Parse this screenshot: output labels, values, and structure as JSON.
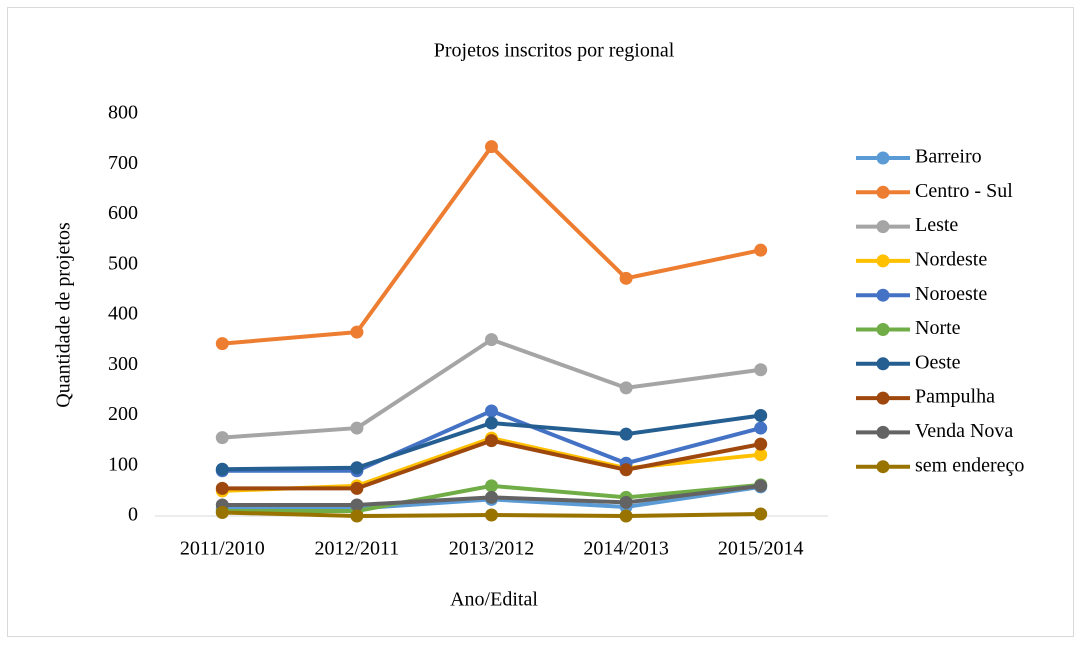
{
  "chart_data": {
    "type": "line",
    "title": "Projetos inscritos por regional",
    "x_label": "Ano/Edital",
    "y_label": "Quantidade de projetos",
    "categories": [
      "2011/2010",
      "2012/2011",
      "2013/2012",
      "2014/2013",
      "2015/2014"
    ],
    "ylim": [
      0,
      800
    ],
    "yticks": [
      0,
      100,
      200,
      300,
      400,
      500,
      600,
      700,
      800
    ],
    "grid": false,
    "legend": "right",
    "series": [
      {
        "name": "Barreiro",
        "color": "#5b9bd5",
        "values": [
          15,
          15,
          33,
          18,
          58
        ]
      },
      {
        "name": "Centro - Sul",
        "color": "#ed7d31",
        "values": [
          343,
          366,
          735,
          473,
          529
        ]
      },
      {
        "name": "Leste",
        "color": "#a5a5a5",
        "values": [
          156,
          175,
          351,
          255,
          291
        ]
      },
      {
        "name": "Nordeste",
        "color": "#ffc000",
        "values": [
          50,
          60,
          155,
          95,
          122
        ]
      },
      {
        "name": "Noroeste",
        "color": "#4472c4",
        "values": [
          90,
          90,
          209,
          105,
          175
        ]
      },
      {
        "name": "Norte",
        "color": "#70ad47",
        "values": [
          10,
          10,
          60,
          37,
          62
        ]
      },
      {
        "name": "Oeste",
        "color": "#255e91",
        "values": [
          93,
          96,
          185,
          163,
          200
        ]
      },
      {
        "name": "Pampulha",
        "color": "#9e480e",
        "values": [
          55,
          55,
          150,
          92,
          143
        ]
      },
      {
        "name": "Venda Nova",
        "color": "#636363",
        "values": [
          22,
          22,
          37,
          27,
          60
        ]
      },
      {
        "name": "sem endereço",
        "color": "#997300",
        "values": [
          7,
          0,
          2,
          0,
          4
        ]
      }
    ]
  }
}
